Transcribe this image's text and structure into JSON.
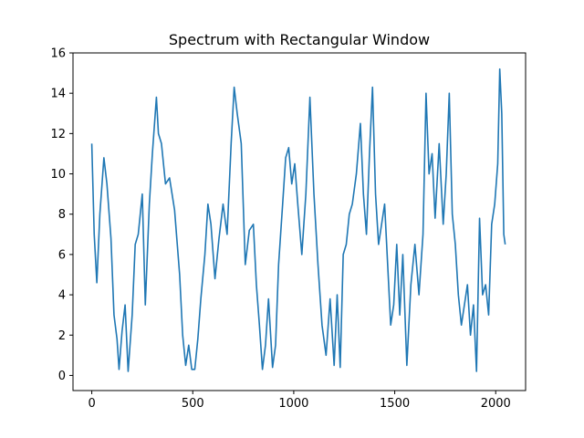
{
  "chart_data": {
    "type": "line",
    "title": "Spectrum with Rectangular Window",
    "xlabel": "",
    "ylabel": "",
    "xlim": [
      -93,
      2148
    ],
    "ylim": [
      -0.75,
      16
    ],
    "x_ticks": [
      0,
      500,
      1000,
      1500,
      2000
    ],
    "y_ticks": [
      0,
      2,
      4,
      6,
      8,
      10,
      12,
      14,
      16
    ],
    "grid": false,
    "legend": "none",
    "series": [
      {
        "color": "#1f77b4",
        "x": [
          0,
          12,
          25,
          40,
          60,
          75,
          95,
          110,
          125,
          135,
          150,
          165,
          180,
          200,
          215,
          230,
          250,
          265,
          285,
          300,
          320,
          330,
          345,
          365,
          385,
          410,
          435,
          450,
          465,
          480,
          495,
          510,
          525,
          540,
          560,
          575,
          590,
          610,
          630,
          650,
          670,
          690,
          705,
          720,
          740,
          760,
          780,
          800,
          815,
          830,
          845,
          860,
          875,
          895,
          910,
          925,
          945,
          960,
          975,
          990,
          1005,
          1020,
          1040,
          1060,
          1080,
          1100,
          1120,
          1140,
          1160,
          1180,
          1200,
          1215,
          1230,
          1245,
          1260,
          1275,
          1290,
          1310,
          1330,
          1345,
          1360,
          1375,
          1390,
          1405,
          1420,
          1435,
          1450,
          1465,
          1480,
          1495,
          1510,
          1525,
          1540,
          1560,
          1580,
          1600,
          1620,
          1640,
          1655,
          1670,
          1685,
          1700,
          1720,
          1740,
          1755,
          1770,
          1785,
          1800,
          1815,
          1830,
          1845,
          1860,
          1875,
          1890,
          1905,
          1920,
          1935,
          1950,
          1965,
          1980,
          1995,
          2010,
          2020,
          2030,
          2040,
          2047
        ],
        "y": [
          11.5,
          7.0,
          4.6,
          8.0,
          10.8,
          9.5,
          6.8,
          3.0,
          1.8,
          0.3,
          2.2,
          3.5,
          0.2,
          3.0,
          6.5,
          7.0,
          9.0,
          3.5,
          8.5,
          11.0,
          13.8,
          12.0,
          11.5,
          9.5,
          9.8,
          8.2,
          5.0,
          2.0,
          0.5,
          1.5,
          0.3,
          0.3,
          1.8,
          3.8,
          6.0,
          8.5,
          7.5,
          4.8,
          6.8,
          8.5,
          7.0,
          11.5,
          14.3,
          13.0,
          11.5,
          5.5,
          7.2,
          7.5,
          4.5,
          2.5,
          0.3,
          1.5,
          3.8,
          0.4,
          1.5,
          5.5,
          8.5,
          10.8,
          11.3,
          9.5,
          10.5,
          8.5,
          6.0,
          9.0,
          13.8,
          9.0,
          5.5,
          2.5,
          1.0,
          3.8,
          0.5,
          4.0,
          0.4,
          6.0,
          6.5,
          8.0,
          8.5,
          10.0,
          12.5,
          9.0,
          7.0,
          11.0,
          14.3,
          9.0,
          6.5,
          7.5,
          8.5,
          5.5,
          2.5,
          3.5,
          6.5,
          3.0,
          6.0,
          0.5,
          4.5,
          6.5,
          4.0,
          7.0,
          14.0,
          10.0,
          11.0,
          7.8,
          11.5,
          7.5,
          10.0,
          14.0,
          8.0,
          6.5,
          4.0,
          2.5,
          3.5,
          4.5,
          2.0,
          3.5,
          0.2,
          7.8,
          4.0,
          4.5,
          3.0,
          7.5,
          8.5,
          10.5,
          15.2,
          13.0,
          7.0,
          6.5
        ]
      }
    ]
  }
}
